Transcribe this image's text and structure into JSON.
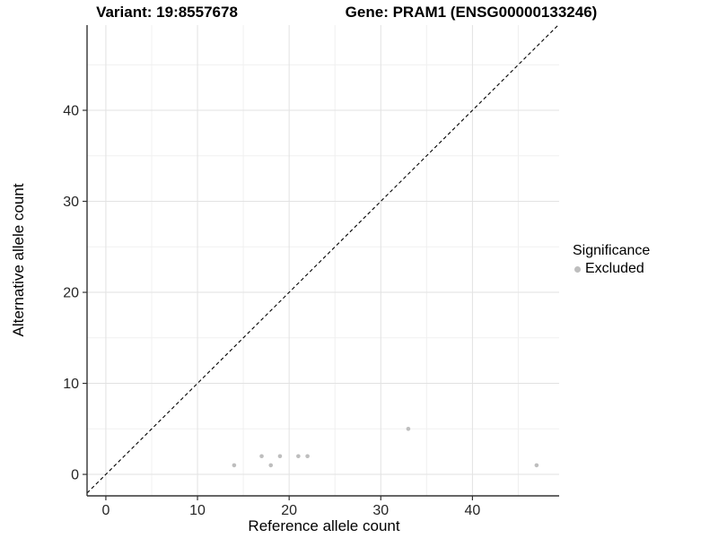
{
  "titles": {
    "variant": "Variant: 19:8557678",
    "gene": "Gene: PRAM1 (ENSG00000133246)"
  },
  "chart_data": {
    "type": "scatter",
    "title": "Variant: 19:8557678   Gene: PRAM1 (ENSG00000133246)",
    "xlabel": "Reference allele count",
    "ylabel": "Alternative allele count",
    "xlim": [
      -2.05,
      49.46
    ],
    "ylim": [
      -2.36,
      49.36
    ],
    "x_ticks": [
      0,
      10,
      20,
      30,
      40
    ],
    "y_ticks": [
      0,
      10,
      20,
      30,
      40
    ],
    "x_minor_ticks": [
      5,
      15,
      25,
      35,
      45
    ],
    "y_minor_ticks": [
      5,
      15,
      25,
      35,
      45
    ],
    "grid": true,
    "identity_line": {
      "style": "dashed",
      "color": "#000000",
      "equation": "y = x"
    },
    "series": [
      {
        "name": "Excluded",
        "color": "#bebebe",
        "points": [
          [
            14,
            1
          ],
          [
            17,
            2
          ],
          [
            18,
            1
          ],
          [
            19,
            2
          ],
          [
            21,
            2
          ],
          [
            22,
            2
          ],
          [
            33,
            5
          ],
          [
            47,
            1
          ]
        ]
      }
    ],
    "legend": {
      "title": "Significance",
      "position": "right",
      "items": [
        {
          "label": "Excluded",
          "color": "#bebebe"
        }
      ]
    }
  },
  "style_colors": {
    "point": "#bebebe",
    "grid_major": "#e2e2e2",
    "grid_minor": "#f0f0f0",
    "axis_line": "#333333",
    "tick_mark": "#333333",
    "tick_label": "#262626"
  }
}
